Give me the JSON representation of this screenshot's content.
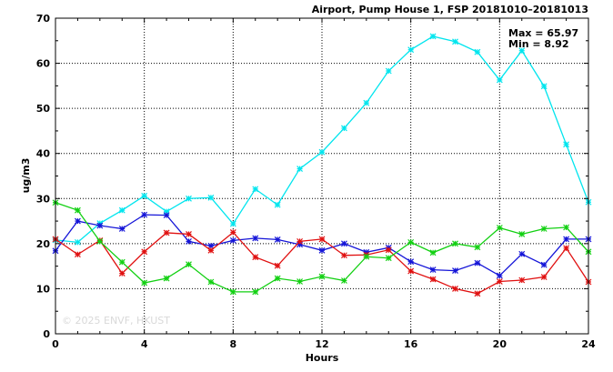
{
  "chart_data": {
    "type": "line",
    "title": "Airport, Pump House 1, FSP 20181010–20181013",
    "xlabel": "Hours",
    "ylabel": "ug/m3",
    "xlim": [
      0,
      24
    ],
    "ylim": [
      0,
      70
    ],
    "xticks": [
      0,
      4,
      8,
      12,
      16,
      20,
      24
    ],
    "yticks": [
      0,
      10,
      20,
      30,
      40,
      50,
      60,
      70
    ],
    "grid": true,
    "stats": {
      "max_label": "Max = 65.97",
      "min_label": "Min =  8.92"
    },
    "watermark": "© 2025  ENVF, HKUST",
    "x": [
      0,
      1,
      2,
      3,
      4,
      5,
      6,
      7,
      8,
      9,
      10,
      11,
      12,
      13,
      14,
      15,
      16,
      17,
      18,
      19,
      20,
      21,
      22,
      23,
      24
    ],
    "series": [
      {
        "color": "#00e5ee",
        "values": [
          20.8,
          20.3,
          24.5,
          27.4,
          30.6,
          27.1,
          30.0,
          30.2,
          24.4,
          32.1,
          28.6,
          36.6,
          40.3,
          45.6,
          51.2,
          58.3,
          63.0,
          65.97,
          64.8,
          62.5,
          56.3,
          62.8,
          54.9,
          42.0,
          29.2
        ]
      },
      {
        "color": "#1515d8",
        "values": [
          18.4,
          25.0,
          24.0,
          23.3,
          26.4,
          26.3,
          20.5,
          19.5,
          20.7,
          21.2,
          20.9,
          19.8,
          18.5,
          20.0,
          18.1,
          19.1,
          16.0,
          14.2,
          14.0,
          15.7,
          12.9,
          17.7,
          15.3,
          21.0,
          21.0
        ]
      },
      {
        "color": "#e01010",
        "values": [
          21.0,
          17.6,
          20.7,
          13.4,
          18.2,
          22.4,
          22.1,
          18.5,
          22.5,
          17.0,
          15.1,
          20.5,
          21.0,
          17.4,
          17.5,
          18.6,
          13.9,
          12.1,
          10.0,
          8.92,
          11.6,
          11.9,
          12.6,
          19.0,
          11.5
        ]
      },
      {
        "color": "#12d012",
        "values": [
          29.1,
          27.4,
          20.5,
          15.9,
          11.3,
          12.3,
          15.4,
          11.5,
          9.3,
          9.3,
          12.3,
          11.6,
          12.7,
          11.8,
          17.1,
          16.8,
          20.3,
          18.0,
          20.0,
          19.2,
          23.5,
          22.1,
          23.3,
          23.6,
          18.2
        ]
      }
    ]
  }
}
